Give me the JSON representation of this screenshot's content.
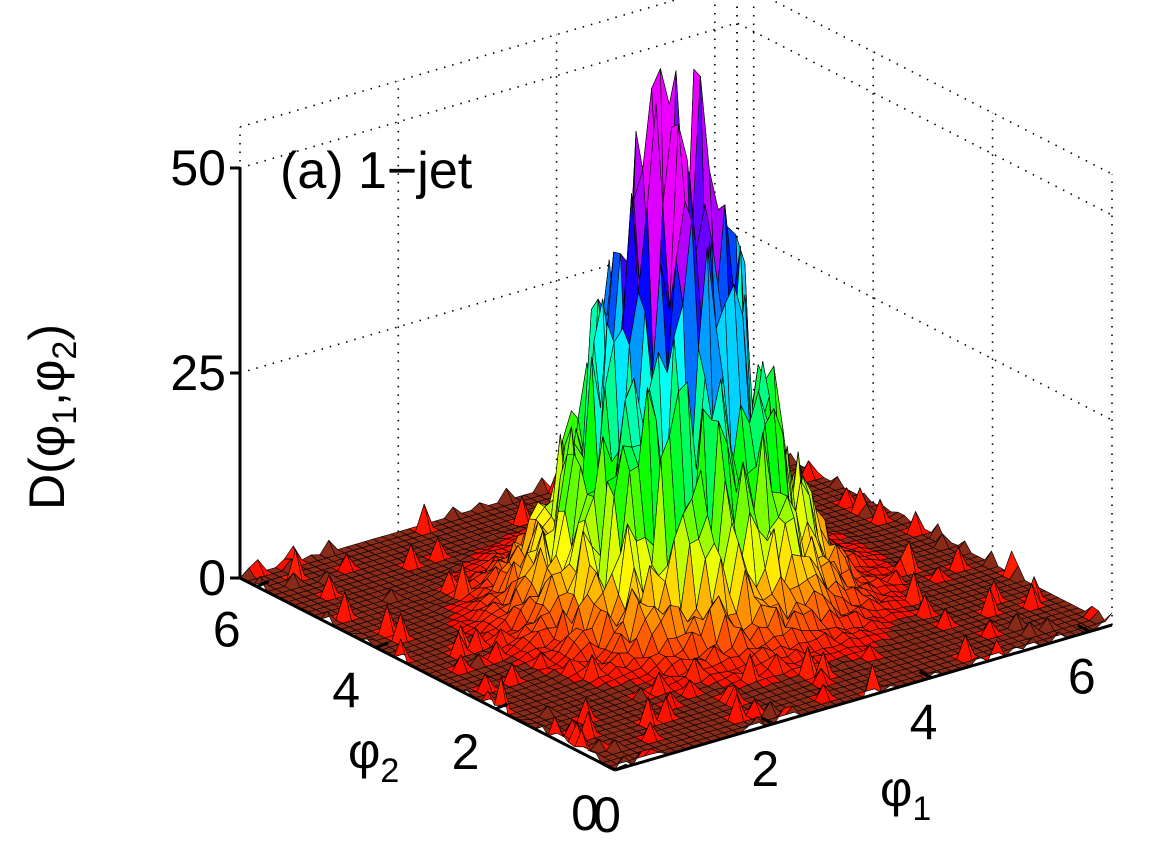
{
  "chart_data": {
    "type": "surface3d",
    "annotation": "(a) 1−jet",
    "zlabel": {
      "main": "D(",
      "s1": "φ",
      "sub1": "1",
      "sep": ",",
      "s2": "φ",
      "sub2": "2",
      "close": ")"
    },
    "xlabel": {
      "sym": "φ",
      "sub": "1"
    },
    "ylabel": {
      "sym": "φ",
      "sub": "2"
    },
    "x_ticks": [
      "0",
      "2",
      "4",
      "6"
    ],
    "y_ticks": [
      "0",
      "2",
      "4",
      "6"
    ],
    "z_ticks": [
      "0",
      "25",
      "50"
    ],
    "xlim": [
      0,
      6.28
    ],
    "ylim": [
      0,
      6.28
    ],
    "zlim": [
      0,
      50
    ],
    "grid": true,
    "colormap": "hsv (red at low values, through yellow, green, cyan, blue, to purple at the peak)",
    "surface": {
      "description": "sharply peaked noisy distribution centered near phi1 = phi2 = pi, width ~0.7 rad",
      "peak_center": [
        3.14,
        3.14
      ],
      "peak_value": 48,
      "base_value": 0,
      "sigma": 0.75,
      "noise": "strong multiplicative spike noise; scattered small spikes near the plateau edges"
    }
  }
}
